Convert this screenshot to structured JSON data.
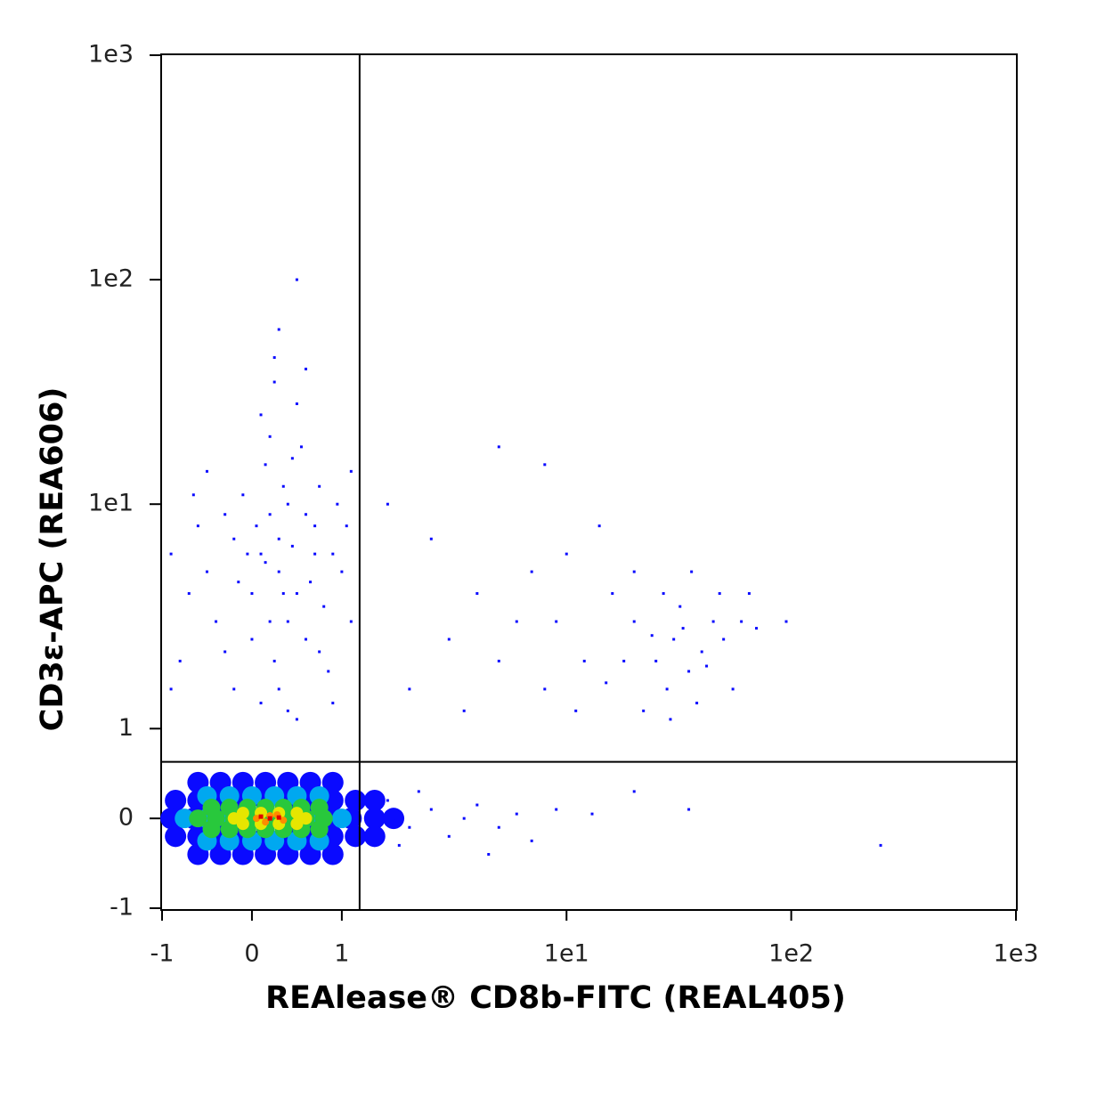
{
  "chart_data": {
    "type": "scatter",
    "x_label": "REAlease® CD8b-FITC (REAL405)",
    "y_label": "CD3ε-APC (REA606)",
    "scale": "biexponential",
    "xlim": [
      -1,
      1000
    ],
    "ylim": [
      -1,
      1000
    ],
    "xticks": [
      -1,
      0,
      1,
      {
        "value": 10,
        "label": "1e1"
      },
      {
        "value": 100,
        "label": "1e2"
      },
      {
        "value": 1000,
        "label": "1e3"
      }
    ],
    "yticks": [
      -1,
      0,
      1,
      {
        "value": 10,
        "label": "1e1"
      },
      {
        "value": 100,
        "label": "1e2"
      },
      {
        "value": 1000,
        "label": "1e3"
      }
    ],
    "gates": {
      "x": 1.2,
      "y": 0.63
    },
    "layers": [
      {
        "color": "#0a0aff",
        "marker_size": 24,
        "points": [
          [
            -0.6,
            0.4
          ],
          [
            -0.35,
            0.4
          ],
          [
            -0.1,
            0.4
          ],
          [
            0.15,
            0.4
          ],
          [
            0.4,
            0.4
          ],
          [
            0.65,
            0.4
          ],
          [
            0.9,
            0.4
          ],
          [
            -0.85,
            0.2
          ],
          [
            -0.6,
            0.2
          ],
          [
            -0.35,
            0.2
          ],
          [
            -0.1,
            0.2
          ],
          [
            0.15,
            0.2
          ],
          [
            0.4,
            0.2
          ],
          [
            0.65,
            0.2
          ],
          [
            0.9,
            0.2
          ],
          [
            1.15,
            0.2
          ],
          [
            1.4,
            0.2
          ],
          [
            -0.9,
            0
          ],
          [
            -0.65,
            0
          ],
          [
            -0.4,
            0
          ],
          [
            -0.15,
            0
          ],
          [
            0.1,
            0
          ],
          [
            0.35,
            0
          ],
          [
            0.6,
            0
          ],
          [
            0.85,
            0
          ],
          [
            1.1,
            0
          ],
          [
            1.4,
            0
          ],
          [
            1.7,
            0
          ],
          [
            -0.85,
            -0.2
          ],
          [
            -0.6,
            -0.2
          ],
          [
            -0.35,
            -0.2
          ],
          [
            -0.1,
            -0.2
          ],
          [
            0.15,
            -0.2
          ],
          [
            0.4,
            -0.2
          ],
          [
            0.65,
            -0.2
          ],
          [
            0.9,
            -0.2
          ],
          [
            1.15,
            -0.2
          ],
          [
            1.4,
            -0.2
          ],
          [
            -0.6,
            -0.4
          ],
          [
            -0.35,
            -0.4
          ],
          [
            -0.1,
            -0.4
          ],
          [
            0.15,
            -0.4
          ],
          [
            0.4,
            -0.4
          ],
          [
            0.65,
            -0.4
          ],
          [
            0.9,
            -0.4
          ]
        ]
      },
      {
        "color": "#00a8f0",
        "marker_size": 22,
        "points": [
          [
            -0.5,
            0.25
          ],
          [
            -0.25,
            0.25
          ],
          [
            0,
            0.25
          ],
          [
            0.25,
            0.25
          ],
          [
            0.5,
            0.25
          ],
          [
            0.75,
            0.25
          ],
          [
            -0.75,
            0
          ],
          [
            -0.5,
            0
          ],
          [
            -0.25,
            0
          ],
          [
            0,
            0
          ],
          [
            0.25,
            0
          ],
          [
            0.5,
            0
          ],
          [
            0.75,
            0
          ],
          [
            1.0,
            0
          ],
          [
            -0.5,
            -0.25
          ],
          [
            -0.25,
            -0.25
          ],
          [
            0,
            -0.25
          ],
          [
            0.25,
            -0.25
          ],
          [
            0.5,
            -0.25
          ],
          [
            0.75,
            -0.25
          ]
        ]
      },
      {
        "color": "#28c83c",
        "marker_size": 20,
        "points": [
          [
            -0.45,
            0.12
          ],
          [
            -0.25,
            0.12
          ],
          [
            -0.05,
            0.12
          ],
          [
            0.15,
            0.12
          ],
          [
            0.35,
            0.12
          ],
          [
            0.55,
            0.12
          ],
          [
            0.75,
            0.12
          ],
          [
            -0.6,
            0
          ],
          [
            -0.4,
            0
          ],
          [
            -0.2,
            0
          ],
          [
            0,
            0
          ],
          [
            0.2,
            0
          ],
          [
            0.4,
            0
          ],
          [
            0.6,
            0
          ],
          [
            0.8,
            0
          ],
          [
            -0.45,
            -0.12
          ],
          [
            -0.25,
            -0.12
          ],
          [
            -0.05,
            -0.12
          ],
          [
            0.15,
            -0.12
          ],
          [
            0.35,
            -0.12
          ],
          [
            0.55,
            -0.12
          ],
          [
            0.75,
            -0.12
          ]
        ]
      },
      {
        "color": "#e6e600",
        "marker_size": 14,
        "points": [
          [
            -0.1,
            0.06
          ],
          [
            0.1,
            0.06
          ],
          [
            0.3,
            0.06
          ],
          [
            0.5,
            0.06
          ],
          [
            -0.2,
            0
          ],
          [
            0.6,
            0
          ],
          [
            -0.1,
            -0.06
          ],
          [
            0.1,
            -0.06
          ],
          [
            0.3,
            -0.06
          ],
          [
            0.5,
            -0.06
          ]
        ]
      },
      {
        "color": "#ff8c00",
        "marker_size": 8,
        "points": [
          [
            0.05,
            0
          ],
          [
            0.2,
            0.03
          ],
          [
            0.35,
            -0.02
          ],
          [
            0.15,
            -0.04
          ],
          [
            0.28,
            0.04
          ]
        ]
      },
      {
        "color": "#e00000",
        "marker_size": 5,
        "points": [
          [
            0.2,
            0
          ],
          [
            0.3,
            0.01
          ],
          [
            0.1,
            0.02
          ]
        ]
      },
      {
        "color": "#0a0aff",
        "marker_size": 3,
        "points": [
          [
            0.3,
            5
          ],
          [
            0.1,
            6
          ],
          [
            0.5,
            4
          ],
          [
            -0.2,
            7
          ],
          [
            0.7,
            8
          ],
          [
            0.2,
            3
          ],
          [
            0.4,
            10
          ],
          [
            -0.5,
            5
          ],
          [
            0.9,
            6
          ],
          [
            0.0,
            4
          ],
          [
            0.6,
            2.5
          ],
          [
            0.35,
            12
          ],
          [
            -0.3,
            9
          ],
          [
            0.8,
            3.5
          ],
          [
            0.15,
            15
          ],
          [
            -0.7,
            4
          ],
          [
            0.45,
            6.5
          ],
          [
            1.0,
            5
          ],
          [
            0.25,
            2
          ],
          [
            -0.1,
            11
          ],
          [
            0.55,
            18
          ],
          [
            -0.4,
            3
          ],
          [
            0.05,
            8
          ],
          [
            0.75,
            12
          ],
          [
            0.3,
            1.5
          ],
          [
            -0.6,
            8
          ],
          [
            0.65,
            4.5
          ],
          [
            0.2,
            20
          ],
          [
            -0.8,
            2
          ],
          [
            1.1,
            3
          ],
          [
            0.4,
            1.2
          ],
          [
            -0.2,
            1.5
          ],
          [
            0.85,
            1.8
          ],
          [
            0.1,
            25
          ],
          [
            0.5,
            28
          ],
          [
            -0.5,
            14
          ],
          [
            -0.9,
            6
          ],
          [
            0.95,
            10
          ],
          [
            0.3,
            7
          ],
          [
            0.15,
            5.5
          ],
          [
            0.6,
            9
          ],
          [
            -0.15,
            4.5
          ],
          [
            0.4,
            3
          ],
          [
            0.7,
            6
          ],
          [
            0.0,
            2.5
          ],
          [
            0.5,
            1.1
          ],
          [
            -0.3,
            2.2
          ],
          [
            1.05,
            8
          ],
          [
            0.35,
            4
          ],
          [
            0.2,
            9
          ],
          [
            -0.05,
            6
          ],
          [
            0.75,
            2.2
          ],
          [
            -0.65,
            11
          ],
          [
            0.45,
            16
          ],
          [
            0.1,
            1.3
          ],
          [
            0.9,
            1.3
          ],
          [
            -0.9,
            1.5
          ],
          [
            0.25,
            35
          ],
          [
            0.6,
            40
          ],
          [
            1.1,
            14
          ],
          [
            25,
            2
          ],
          [
            30,
            2.5
          ],
          [
            35,
            1.8
          ],
          [
            20,
            3
          ],
          [
            40,
            2.2
          ],
          [
            28,
            1.5
          ],
          [
            45,
            3
          ],
          [
            22,
            1.2
          ],
          [
            32,
            3.5
          ],
          [
            18,
            2
          ],
          [
            50,
            2.5
          ],
          [
            38,
            1.3
          ],
          [
            27,
            4
          ],
          [
            60,
            3
          ],
          [
            15,
            1.6
          ],
          [
            42,
            1.9
          ],
          [
            55,
            1.5
          ],
          [
            33,
            2.8
          ],
          [
            24,
            2.6
          ],
          [
            70,
            2.8
          ],
          [
            36,
            5
          ],
          [
            48,
            4
          ],
          [
            29,
            1.1
          ],
          [
            20,
            5
          ],
          [
            65,
            4
          ],
          [
            95,
            3
          ],
          [
            2,
            1.5
          ],
          [
            3,
            2.5
          ],
          [
            4,
            4
          ],
          [
            5,
            2
          ],
          [
            6,
            3
          ],
          [
            8,
            1.5
          ],
          [
            10,
            6
          ],
          [
            12,
            2
          ],
          [
            14,
            8
          ],
          [
            7,
            5
          ],
          [
            3.5,
            1.2
          ],
          [
            9,
            3
          ],
          [
            2.5,
            7
          ],
          [
            5,
            18
          ],
          [
            8,
            15
          ],
          [
            11,
            1.2
          ],
          [
            1.6,
            10
          ],
          [
            16,
            4
          ],
          [
            1.6,
            0.2
          ],
          [
            2,
            -0.1
          ],
          [
            2.5,
            0.1
          ],
          [
            3,
            -0.2
          ],
          [
            3.5,
            0
          ],
          [
            4,
            0.15
          ],
          [
            5,
            -0.1
          ],
          [
            6,
            0.05
          ],
          [
            7,
            -0.25
          ],
          [
            9,
            0.1
          ],
          [
            2.2,
            0.3
          ],
          [
            1.8,
            -0.3
          ],
          [
            4.5,
            -0.4
          ],
          [
            13,
            0.05
          ],
          [
            20,
            0.3
          ],
          [
            35,
            0.1
          ],
          [
            250,
            -0.3
          ],
          [
            1.7,
            0
          ],
          [
            0.5,
            100
          ],
          [
            0.3,
            60
          ],
          [
            0.25,
            45
          ]
        ]
      }
    ]
  }
}
